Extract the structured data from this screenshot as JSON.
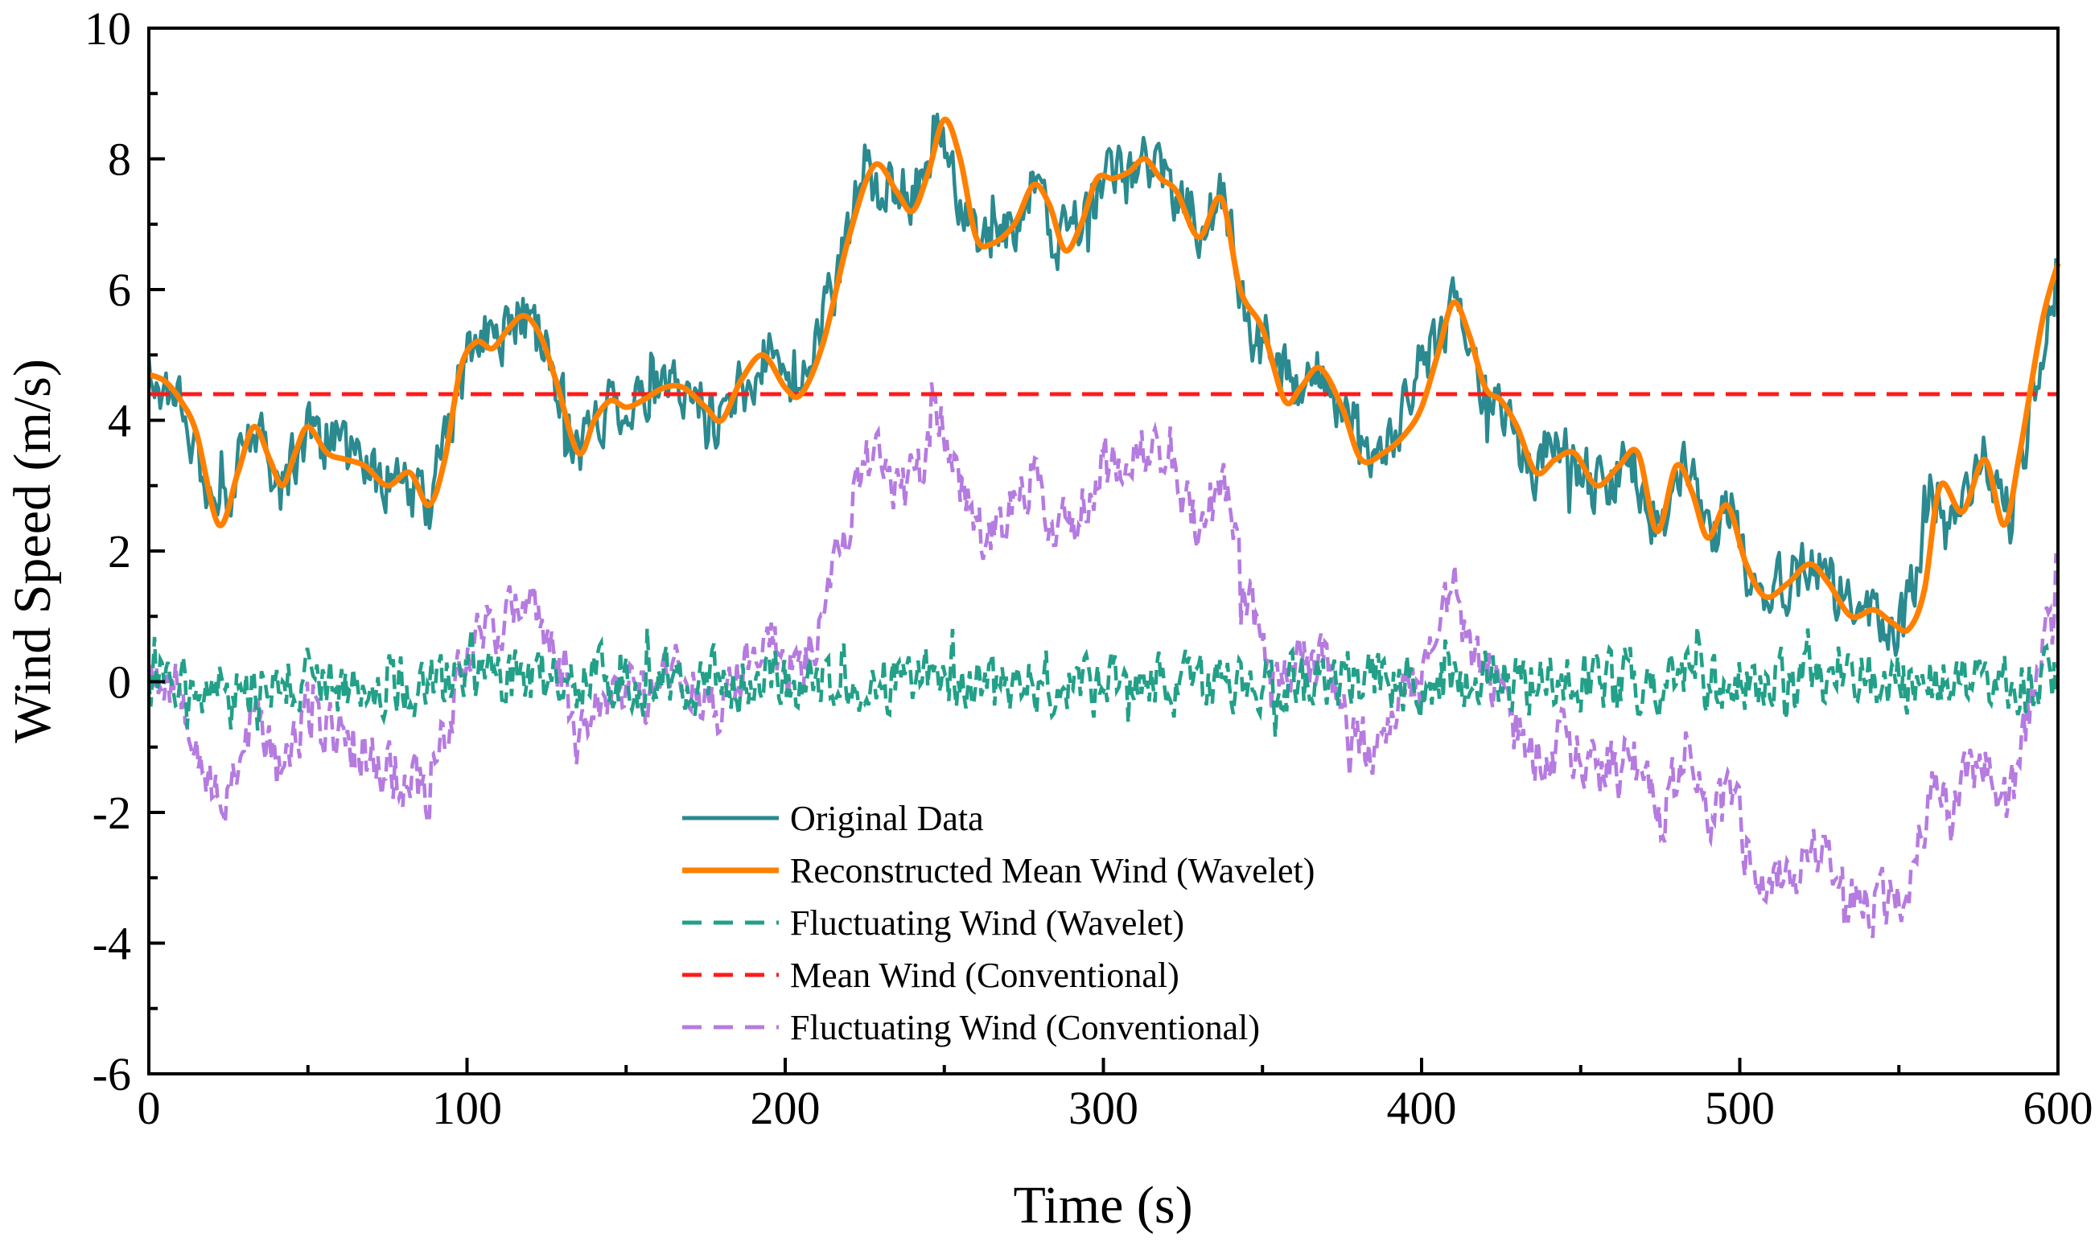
{
  "chart_data": {
    "type": "line",
    "title": "",
    "xlabel": "Time (s)",
    "ylabel": "Wind Speed (m/s)",
    "xlim": [
      0,
      600
    ],
    "ylim": [
      -6,
      10
    ],
    "xticks": [
      0,
      100,
      200,
      300,
      400,
      500,
      600
    ],
    "yticks": [
      -6,
      -4,
      -2,
      0,
      2,
      4,
      6,
      8,
      10
    ],
    "grid": false,
    "legend_position": "bottom-center",
    "series": [
      {
        "name": "Original Data",
        "style": "solid",
        "color": "#2a8a8f",
        "x": [
          0,
          10,
          22,
          33,
          42,
          50,
          62,
          75,
          88,
          95,
          102,
          110,
          118,
          126,
          135,
          145,
          155,
          168,
          180,
          193,
          205,
          215,
          225,
          235,
          242,
          248,
          255,
          262,
          270,
          278,
          285,
          292,
          300,
          308,
          315,
          322,
          330,
          338,
          345,
          352,
          362,
          370,
          380,
          390,
          400,
          410,
          415,
          425,
          435,
          445,
          455,
          465,
          475,
          483,
          490,
          497,
          505,
          515,
          525,
          535,
          545,
          552,
          560,
          568,
          577,
          585,
          600
        ],
        "y": [
          4.7,
          4.4,
          2.4,
          3.9,
          3.0,
          3.9,
          3.5,
          3.1,
          2.7,
          4.0,
          5.2,
          5.3,
          5.6,
          5.0,
          3.5,
          4.3,
          4.3,
          4.5,
          4.0,
          5.0,
          4.5,
          6.0,
          7.9,
          7.3,
          7.6,
          8.6,
          7.2,
          6.7,
          7.0,
          7.5,
          6.7,
          7.0,
          7.7,
          7.7,
          8.0,
          7.5,
          6.9,
          7.4,
          5.6,
          4.8,
          4.6,
          4.7,
          3.4,
          3.6,
          4.8,
          5.8,
          4.9,
          4.2,
          3.2,
          3.5,
          3.0,
          3.4,
          2.3,
          3.3,
          2.2,
          2.7,
          1.3,
          1.5,
          1.8,
          1.0,
          1.0,
          0.9,
          2.8,
          2.5,
          3.4,
          2.5,
          6.4
        ]
      },
      {
        "name": "Reconstructed Mean Wind (Wavelet)",
        "style": "solid",
        "color": "#ff8000",
        "x": [
          0,
          5,
          10,
          15,
          22,
          28,
          33,
          38,
          42,
          46,
          50,
          56,
          62,
          68,
          75,
          82,
          88,
          93,
          98,
          103,
          108,
          113,
          118,
          123,
          128,
          135,
          140,
          145,
          150,
          155,
          162,
          168,
          175,
          180,
          186,
          193,
          200,
          205,
          212,
          220,
          228,
          235,
          240,
          245,
          250,
          255,
          260,
          265,
          272,
          278,
          283,
          288,
          293,
          298,
          303,
          308,
          313,
          318,
          323,
          330,
          337,
          343,
          350,
          357,
          362,
          368,
          375,
          381,
          388,
          395,
          400,
          405,
          410,
          415,
          420,
          425,
          430,
          436,
          442,
          448,
          455,
          462,
          468,
          474,
          480,
          485,
          490,
          496,
          502,
          508,
          515,
          522,
          528,
          535,
          542,
          548,
          553,
          558,
          563,
          570,
          577,
          583,
          588,
          595,
          600
        ],
        "y": [
          4.7,
          4.6,
          4.3,
          3.8,
          2.4,
          3.2,
          3.9,
          3.4,
          3.0,
          3.5,
          3.9,
          3.5,
          3.4,
          3.3,
          3.0,
          3.2,
          2.7,
          3.4,
          4.8,
          5.2,
          5.1,
          5.4,
          5.6,
          5.3,
          4.6,
          3.5,
          4.0,
          4.3,
          4.2,
          4.3,
          4.5,
          4.5,
          4.2,
          4.0,
          4.6,
          5.0,
          4.5,
          4.4,
          5.2,
          6.8,
          7.9,
          7.5,
          7.2,
          7.8,
          8.6,
          8.0,
          6.8,
          6.7,
          7.0,
          7.6,
          7.3,
          6.6,
          7.0,
          7.7,
          7.7,
          7.8,
          8.0,
          7.7,
          7.5,
          6.8,
          7.4,
          6.0,
          5.4,
          4.3,
          4.5,
          4.8,
          4.2,
          3.4,
          3.5,
          3.8,
          4.2,
          5.0,
          5.8,
          5.3,
          4.5,
          4.3,
          3.9,
          3.2,
          3.4,
          3.5,
          3.0,
          3.3,
          3.5,
          2.3,
          3.3,
          2.9,
          2.2,
          2.7,
          1.8,
          1.3,
          1.5,
          1.8,
          1.5,
          1.0,
          1.1,
          0.9,
          0.8,
          1.4,
          3.0,
          2.6,
          3.4,
          2.4,
          3.5,
          5.5,
          6.4
        ]
      },
      {
        "name": "Fluctuating Wind (Wavelet)",
        "style": "dashed",
        "color": "#22a088",
        "x": [
          0,
          100,
          200,
          300,
          400,
          500,
          600
        ],
        "y": [
          0,
          0,
          0,
          0,
          0,
          0,
          0
        ]
      },
      {
        "name": "Mean Wind (Conventional)",
        "style": "dashed",
        "color": "#ff1a1a",
        "x": [
          0,
          600
        ],
        "y": [
          4.4,
          4.4
        ]
      },
      {
        "name": "Fluctuating Wind (Conventional)",
        "style": "dashed",
        "color": "#b57be0",
        "x": [
          0,
          10,
          22,
          33,
          42,
          50,
          62,
          75,
          88,
          95,
          102,
          110,
          118,
          126,
          135,
          145,
          155,
          168,
          180,
          193,
          205,
          215,
          225,
          235,
          242,
          248,
          255,
          262,
          270,
          278,
          285,
          292,
          300,
          308,
          315,
          322,
          330,
          338,
          345,
          352,
          362,
          370,
          380,
          390,
          400,
          410,
          415,
          425,
          435,
          445,
          455,
          465,
          475,
          483,
          490,
          497,
          505,
          515,
          525,
          535,
          545,
          552,
          560,
          568,
          577,
          585,
          600
        ],
        "y": [
          0.3,
          0.0,
          -2.0,
          -0.5,
          -1.4,
          -0.5,
          -0.9,
          -1.3,
          -1.7,
          -0.4,
          0.8,
          0.9,
          1.2,
          0.6,
          -0.9,
          -0.1,
          -0.1,
          0.1,
          -0.4,
          0.6,
          0.1,
          1.6,
          3.5,
          2.9,
          3.2,
          4.2,
          2.8,
          2.3,
          2.6,
          3.1,
          2.3,
          2.6,
          3.3,
          3.3,
          3.6,
          3.1,
          2.5,
          3.0,
          1.2,
          0.4,
          0.2,
          0.3,
          -1.0,
          -0.8,
          0.4,
          1.4,
          0.5,
          -0.2,
          -1.2,
          -0.9,
          -1.4,
          -1.0,
          -2.1,
          -1.1,
          -2.2,
          -1.7,
          -3.1,
          -2.9,
          -2.6,
          -3.4,
          -3.4,
          -3.5,
          -1.6,
          -1.9,
          -1.0,
          -1.9,
          2.0
        ]
      }
    ]
  }
}
